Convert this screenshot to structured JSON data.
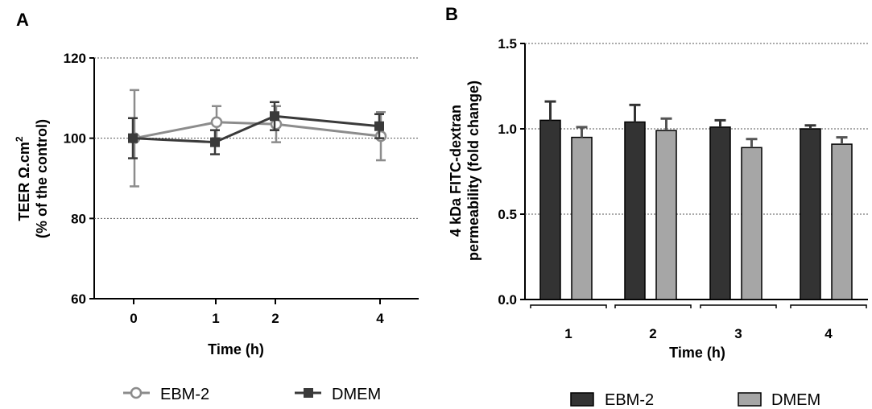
{
  "chart_data": [
    {
      "type": "line",
      "panel": "A",
      "ylabel_line1": "TEER Ω.cm",
      "ylabel_sup": "2",
      "ylabel_line2": "(% of the control)",
      "xlabel": "Time (h)",
      "categories": [
        "0",
        "1",
        "2",
        "4"
      ],
      "ylim": [
        60,
        120
      ],
      "yticks": [
        60,
        80,
        100,
        120
      ],
      "grid": true,
      "legend_position": "bottom",
      "series": [
        {
          "name": "EBM-2",
          "marker": "open-circle",
          "color": "#8c8c8c",
          "values": [
            100,
            104,
            103.5,
            100.5
          ],
          "errors": [
            12,
            4,
            4.5,
            6
          ]
        },
        {
          "name": "DMEM",
          "marker": "filled-square",
          "color": "#3a3a3a",
          "values": [
            100,
            99,
            105.5,
            103
          ],
          "errors": [
            5,
            3,
            3.5,
            3
          ]
        }
      ]
    },
    {
      "type": "bar",
      "panel": "B",
      "ylabel_line1": "4 kDa FITC-dextran",
      "ylabel_line2": "permeability (fold change)",
      "xlabel": "Time (h)",
      "categories": [
        "1",
        "2",
        "3",
        "4"
      ],
      "ylim": [
        0,
        1.5
      ],
      "yticks": [
        "0.0",
        "0.5",
        "1.0",
        "1.5"
      ],
      "grid": true,
      "legend_position": "bottom",
      "series": [
        {
          "name": "EBM-2",
          "color": "#333333",
          "values": [
            1.05,
            1.04,
            1.01,
            1.0
          ],
          "errors": [
            0.11,
            0.1,
            0.04,
            0.02
          ]
        },
        {
          "name": "DMEM",
          "color": "#a6a6a6",
          "values": [
            0.95,
            0.99,
            0.89,
            0.91
          ],
          "errors": [
            0.06,
            0.07,
            0.05,
            0.04
          ]
        }
      ]
    }
  ]
}
